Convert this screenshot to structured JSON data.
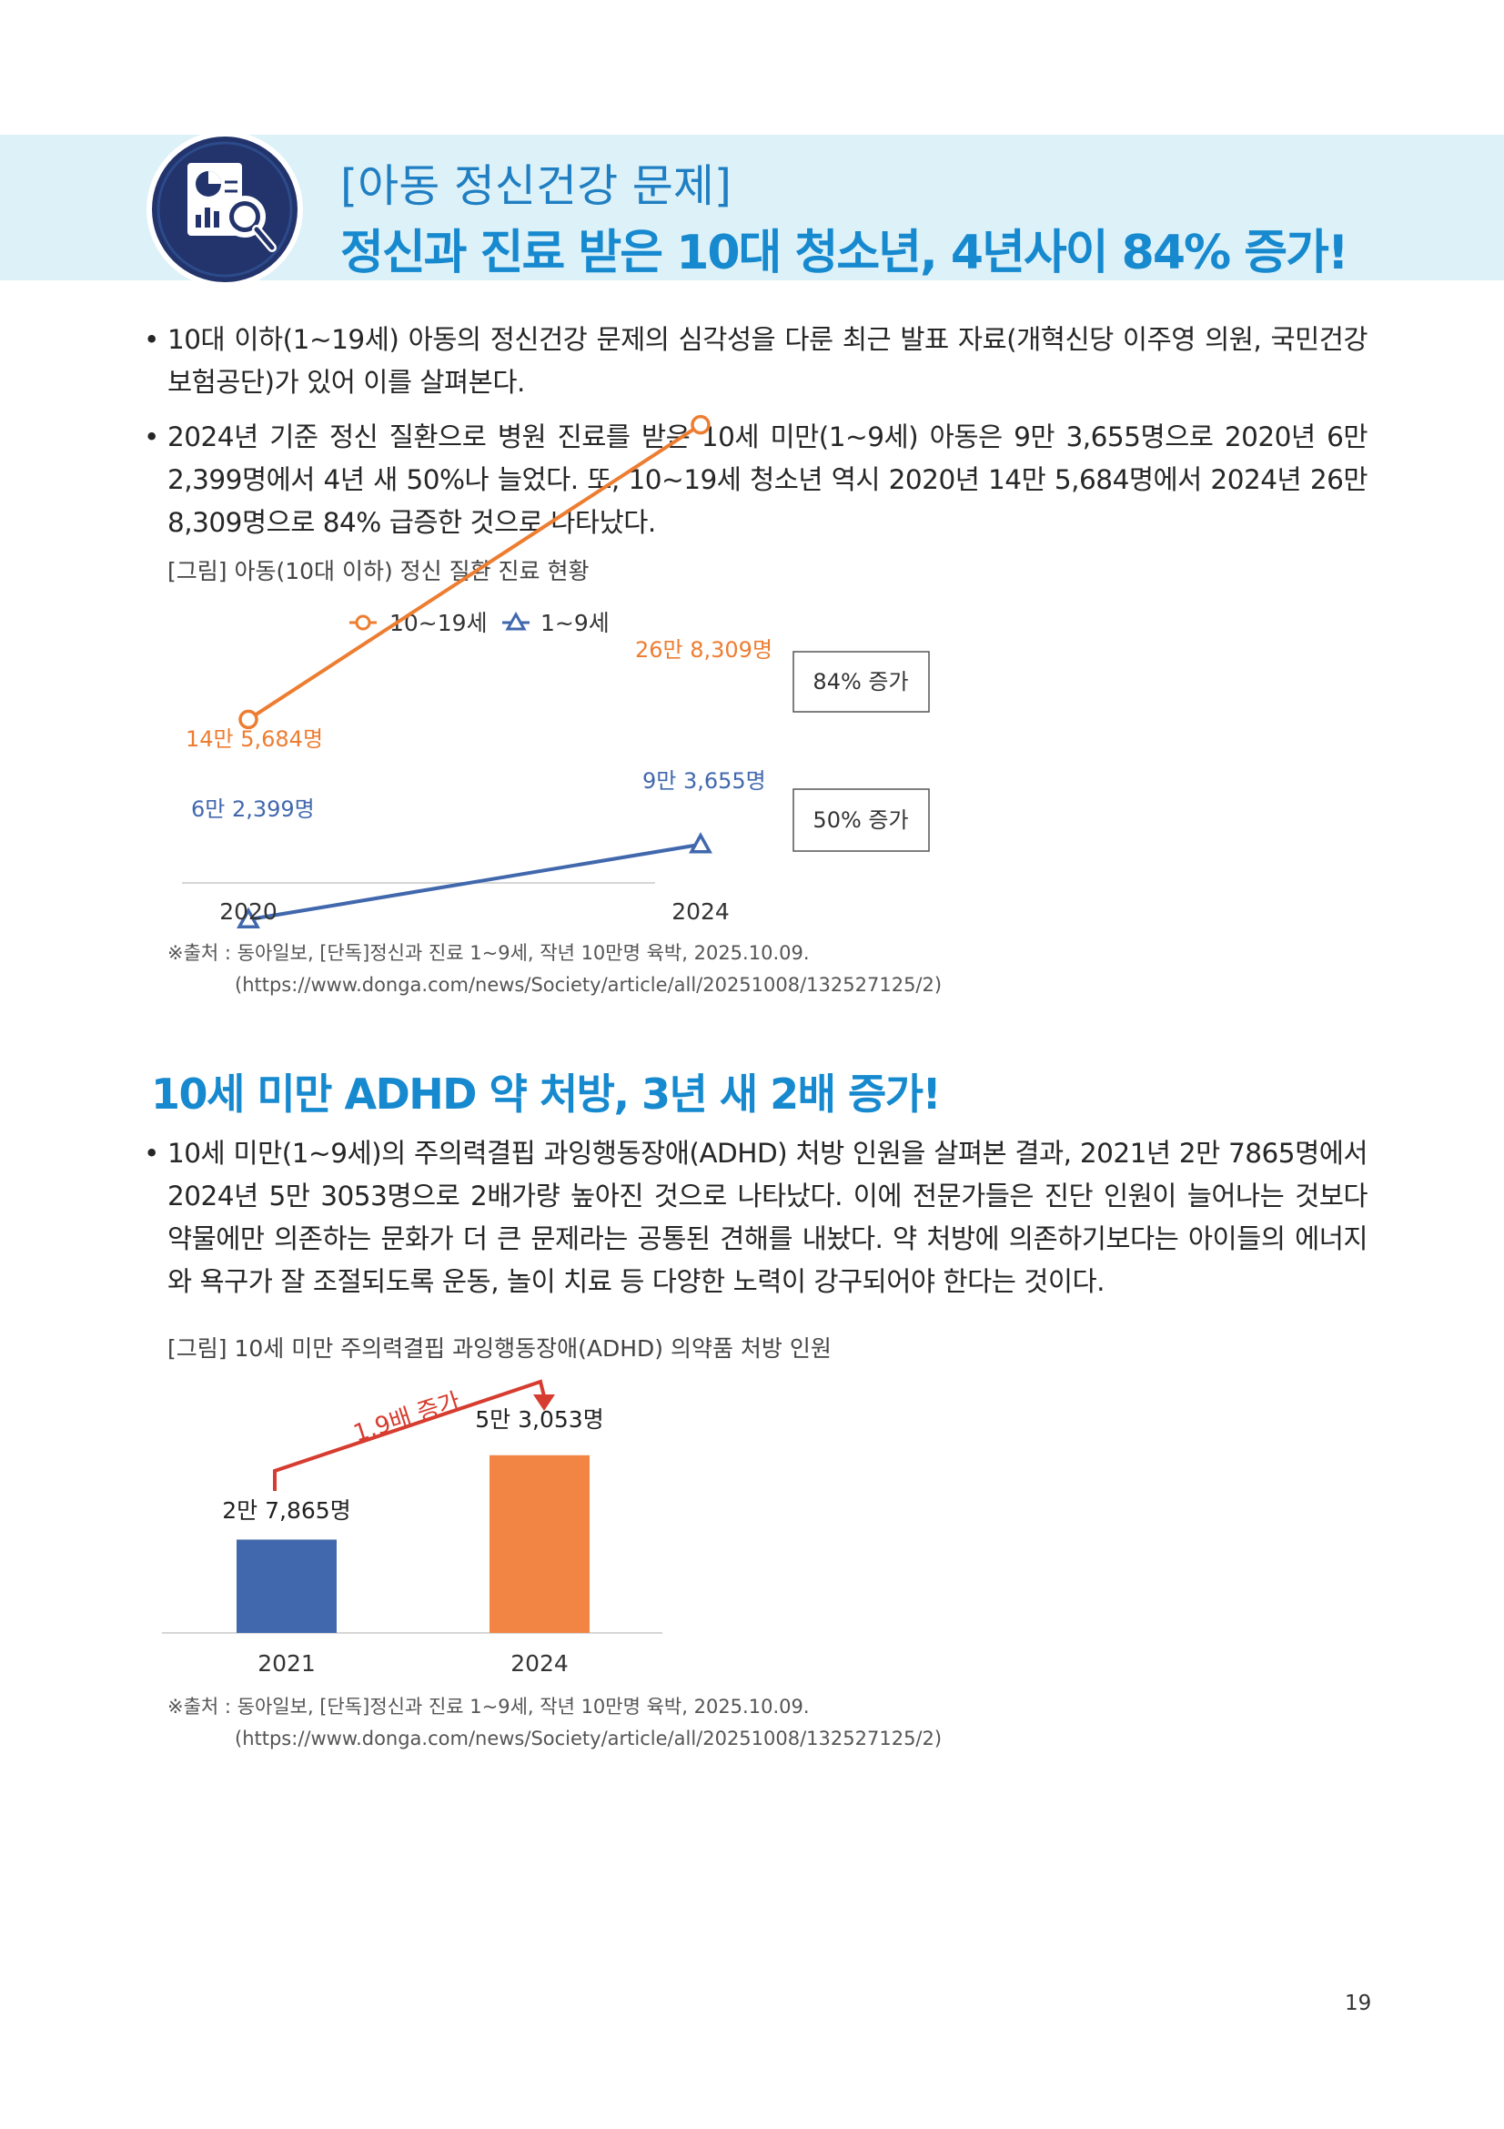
{
  "header": {
    "subtitle": "[아동 정신건강 문제]",
    "headline": "정신과 진료 받은 10대 청소년, 4년사이 84% 증가!",
    "icon": "report-magnifier-icon"
  },
  "section1": {
    "bullets": [
      "10대 이하(1~19세) 아동의 정신건강 문제의 심각성을 다룬 최근 발표 자료(개혁신당 이주영 의원, 국민건강보험공단)가 있어 이를 살펴본다.",
      "2024년 기준 정신 질환으로 병원 진료를 받은 10세 미만(1~9세) 아동은 9만 3,655명으로 2020년 6만 2,399명에서 4년 새 50%나 늘었다. 또, 10~19세 청소년 역시 2020년 14만 5,684명에서 2024년 26만 8,309명으로 84% 급증한 것으로 나타났다."
    ],
    "figure_caption": "[그림] 아동(10대 이하) 정신 질환 진료 현황",
    "source_line1": "※출처 : 동아일보, [단독]정신과 진료 1~9세, 작년 10만명 육박, 2025.10.09.",
    "source_line2": "(https://www.donga.com/news/Society/article/all/20251008/132527125/2)"
  },
  "section2": {
    "title": "10세 미만 ADHD 약 처방, 3년 새 2배 증가!",
    "bullets": [
      "10세 미만(1~9세)의 주의력결핍 과잉행동장애(ADHD) 처방 인원을 살펴본 결과, 2021년 2만 7865명에서 2024년 5만 3053명으로 2배가량 높아진 것으로 나타났다. 이에 전문가들은 진단 인원이 늘어나는 것보다 약물에만 의존하는 문화가 더 큰 문제라는 공통된 견해를 내놨다. 약 처방에 의존하기보다는 아이들의 에너지와 욕구가 잘 조절되도록 운동, 놀이 치료 등 다양한 노력이 강구되어야 한다는 것이다."
    ],
    "figure_caption": "[그림] 10세 미만 주의력결핍 과잉행동장애(ADHD) 의약품 처방 인원",
    "source_line1": "※출처 : 동아일보, [단독]정신과 진료 1~9세, 작년 10만명 육박, 2025.10.09.",
    "source_line2": "(https://www.donga.com/news/Society/article/all/20251008/132527125/2)"
  },
  "page_number": "19",
  "chart_data": [
    {
      "type": "line",
      "title": "아동(10대 이하) 정신 질환 진료 현황",
      "categories": [
        "2020",
        "2024"
      ],
      "series": [
        {
          "name": "10~19세",
          "values": [
            145684,
            268309
          ],
          "labels": [
            "14만 5,684명",
            "26만 8,309명"
          ],
          "color": "#ed7d31",
          "marker": "circle"
        },
        {
          "name": "1~9세",
          "values": [
            62399,
            93655
          ],
          "labels": [
            "6만 2,399명",
            "9만 3,655명"
          ],
          "color": "#4168ad",
          "marker": "triangle"
        }
      ],
      "annotations": [
        "84% 증가",
        "50% 증가"
      ],
      "ylim": [
        0,
        300000
      ],
      "legend": "top"
    },
    {
      "type": "bar",
      "title": "10세 미만 주의력결핍 과잉행동장애(ADHD) 의약품 처방 인원",
      "categories": [
        "2021",
        "2024"
      ],
      "values": [
        27865,
        53053
      ],
      "labels": [
        "2만 7,865명",
        "5만 3,053명"
      ],
      "colors": [
        "#4168ad",
        "#f28444"
      ],
      "annotation": "1.9배 증가",
      "ylim": [
        0,
        60000
      ]
    }
  ]
}
